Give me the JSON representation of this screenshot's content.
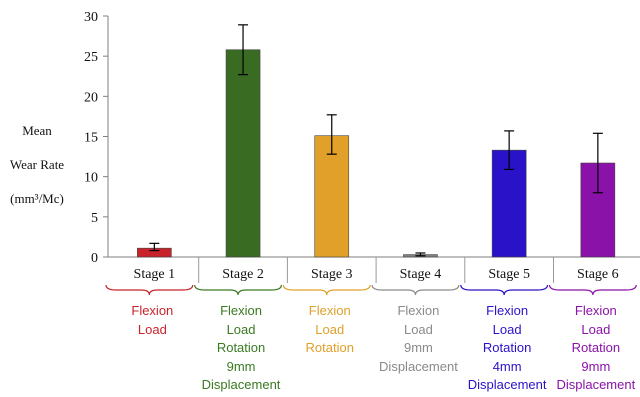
{
  "chart_data": {
    "type": "bar",
    "ylabel_lines": [
      "Mean",
      "Wear Rate",
      "(mm³/Mc)"
    ],
    "ylim": [
      0,
      30
    ],
    "yticks": [
      "0",
      "5",
      "10",
      "15",
      "20",
      "25",
      "30"
    ],
    "grid": false,
    "categories": [
      "Stage 1",
      "Stage 2",
      "Stage 3",
      "Stage 4",
      "Stage 5",
      "Stage 6"
    ],
    "values": [
      1.1,
      25.8,
      15.1,
      0.3,
      13.3,
      11.7
    ],
    "error_low": [
      0.8,
      22.7,
      12.8,
      0.15,
      10.9,
      8.0
    ],
    "error_high": [
      1.7,
      28.9,
      17.7,
      0.5,
      15.7,
      15.4
    ],
    "bar_colors": [
      "#c8232a",
      "#3a6b22",
      "#e0a02a",
      "#808080",
      "#2a12c8",
      "#8a12a8"
    ],
    "stage_descriptions": [
      [
        "Flexion",
        "Load"
      ],
      [
        "Flexion",
        "Load",
        "Rotation",
        "9mm",
        "Displacement"
      ],
      [
        "Flexion",
        "Load",
        "Rotation"
      ],
      [
        "Flexion",
        "Load",
        "9mm",
        "Displacement"
      ],
      [
        "Flexion",
        "Load",
        "Rotation",
        "4mm",
        "Displacement"
      ],
      [
        "Flexion",
        "Load",
        "Rotation",
        "9mm",
        "Displacement"
      ]
    ],
    "description_colors": [
      "#c8232a",
      "#3a7a22",
      "#e0a02a",
      "#8a8a8a",
      "#2a12c8",
      "#8a12a8"
    ]
  }
}
